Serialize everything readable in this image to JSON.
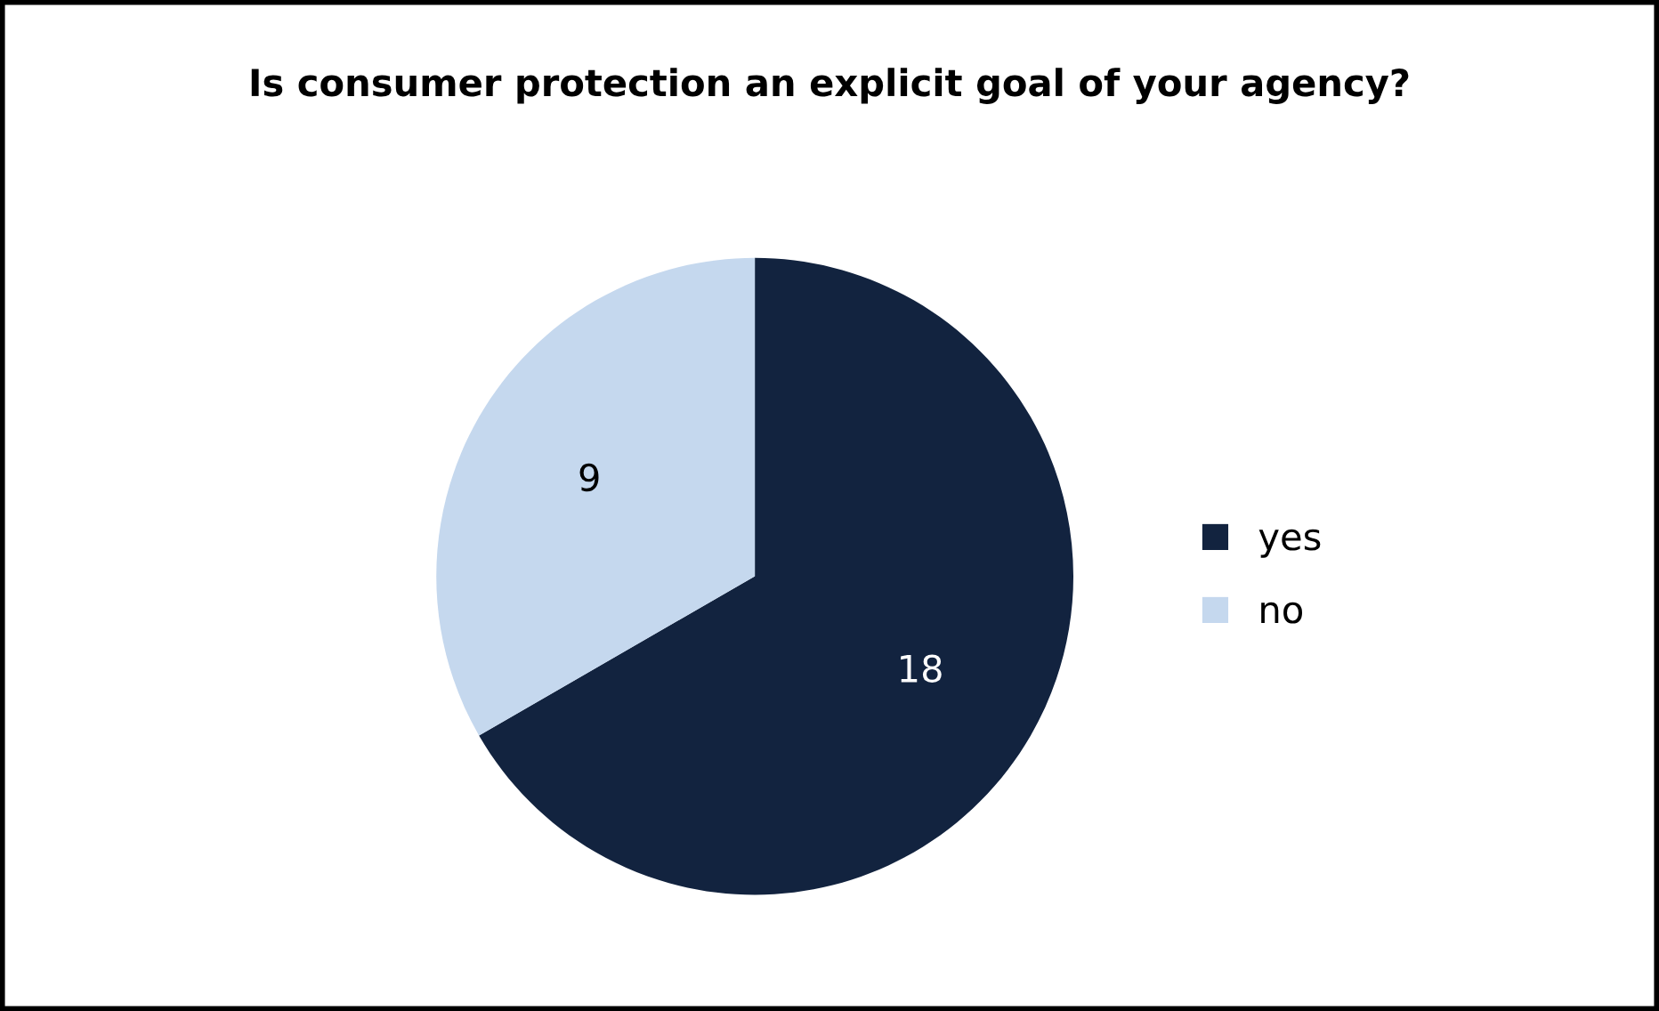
{
  "chart_data": {
    "type": "pie",
    "title": "Is consumer protection an explicit goal of your agency?",
    "categories": [
      "yes",
      "no"
    ],
    "values": [
      18,
      9
    ],
    "colors": [
      "#12233f",
      "#c5d8ee"
    ],
    "data_labels": true,
    "legend": "right"
  }
}
